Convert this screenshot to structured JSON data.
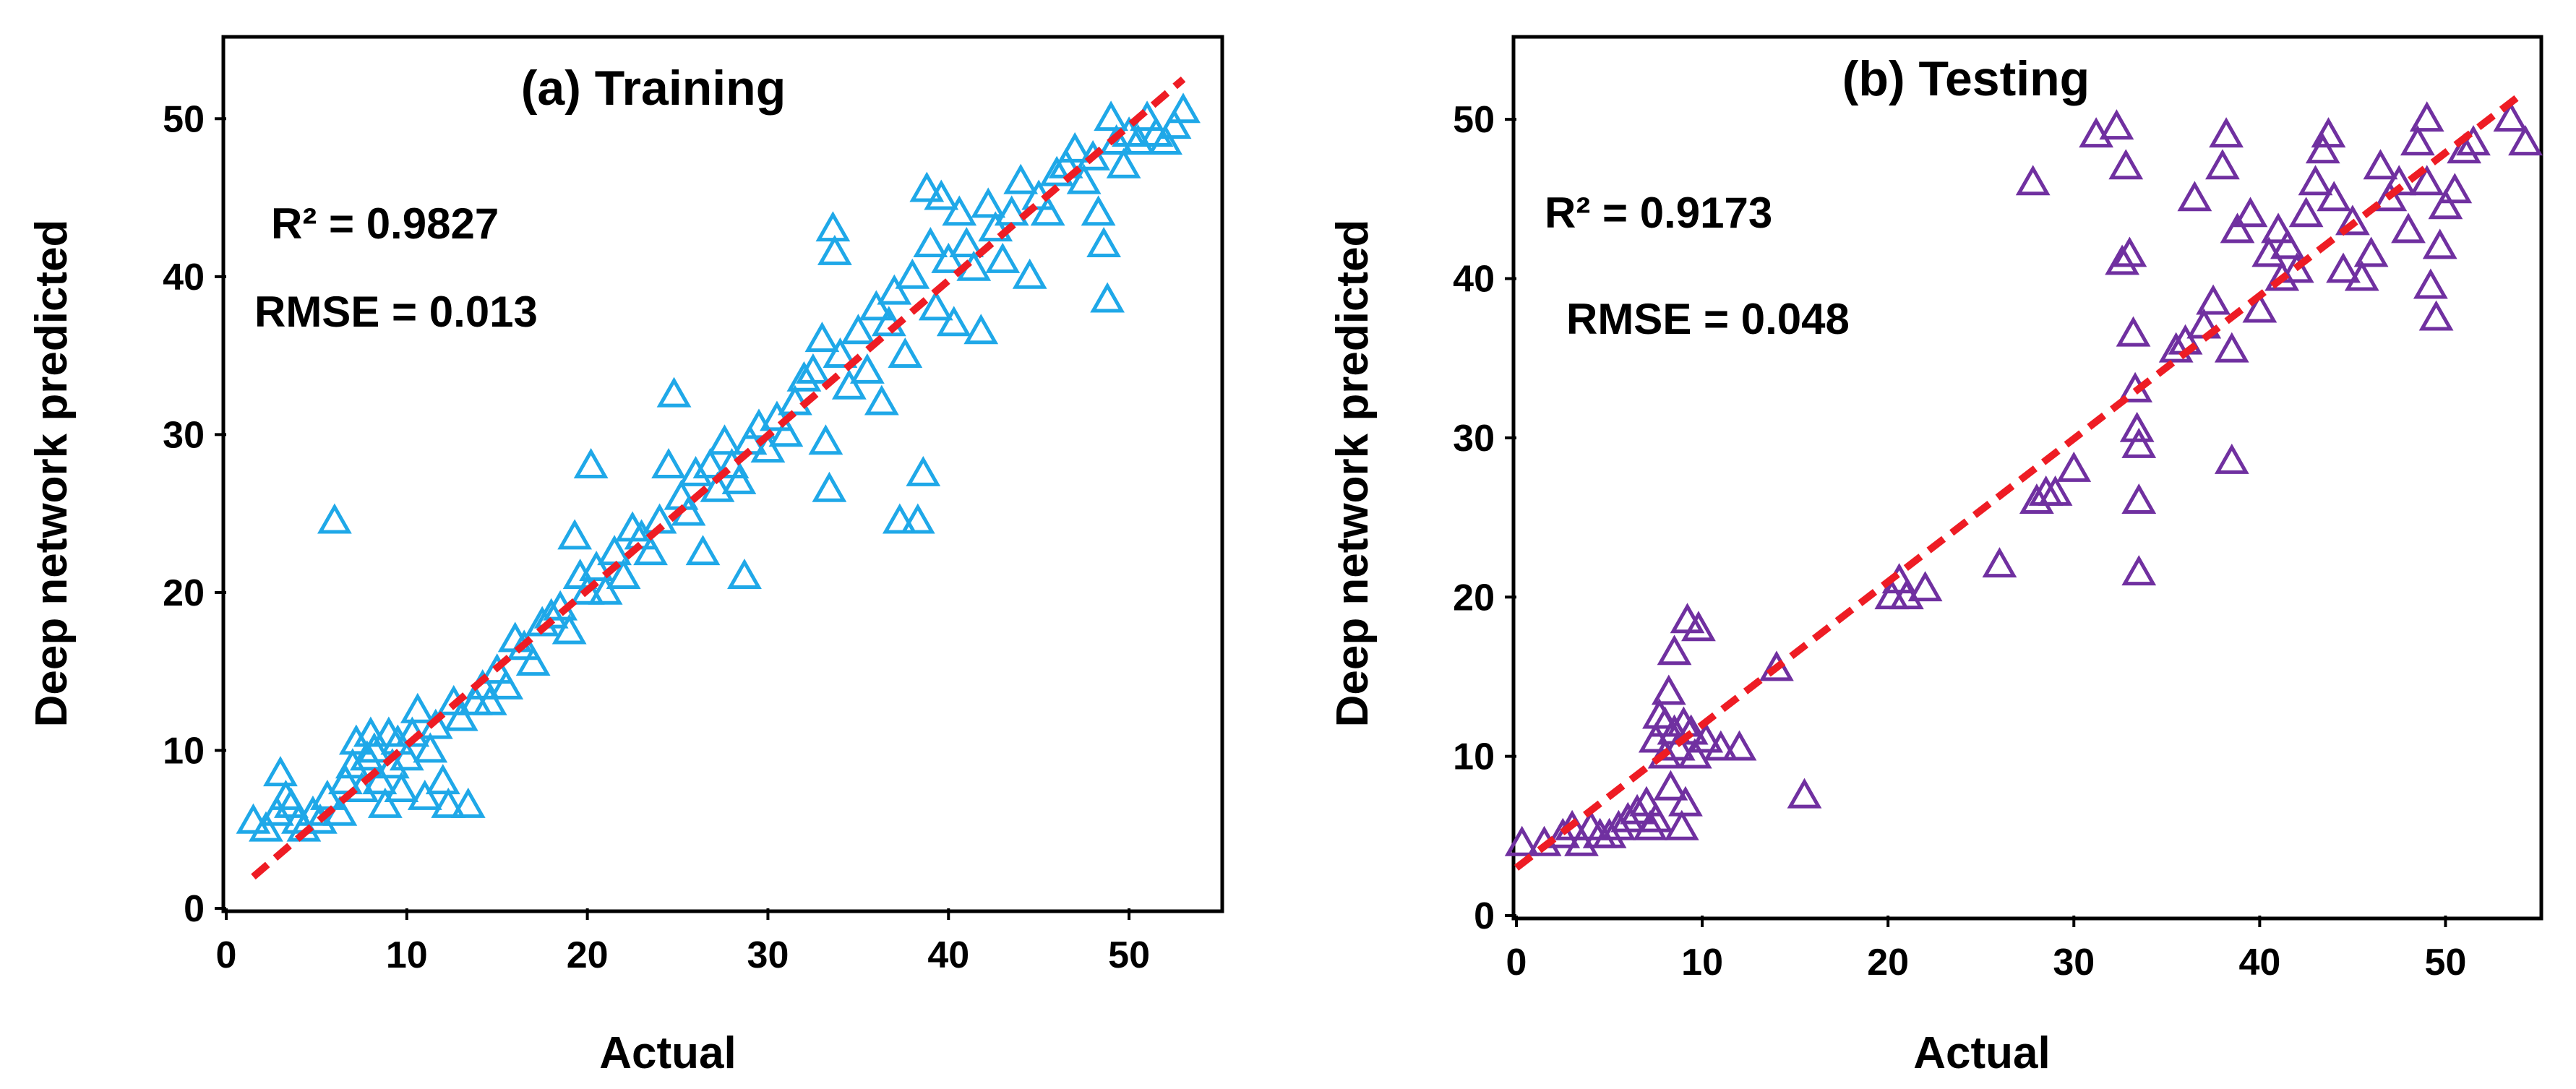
{
  "chart_data": [
    {
      "type": "scatter",
      "title": "(a) Training",
      "xlabel": "Actual",
      "ylabel": "Deep network predicted",
      "xlim": [
        0,
        55
      ],
      "ylim": [
        0,
        55
      ],
      "xticks": [
        0,
        10,
        20,
        30,
        40,
        50
      ],
      "yticks": [
        0,
        10,
        20,
        30,
        40,
        50
      ],
      "x_tick_labels": [
        "0",
        "10",
        "20",
        "30",
        "40",
        "50"
      ],
      "y_tick_labels": [
        "0",
        "10",
        "20",
        "30",
        "40",
        "50"
      ],
      "grid": false,
      "marker": "open-triangle",
      "marker_color": "#1FA8E8",
      "stats": {
        "r2": "R² = 0.9827",
        "rmse": "RMSE = 0.013"
      },
      "fit_line": {
        "color": "#EE1C24",
        "style": "dashed",
        "x": [
          1.5,
          53
        ],
        "y": [
          2,
          52.5
        ]
      },
      "series": [
        {
          "name": "Training",
          "points": [
            [
              1.5,
              5.5
            ],
            [
              2.2,
              5
            ],
            [
              2.8,
              6
            ],
            [
              3,
              8.5
            ],
            [
              3.3,
              7
            ],
            [
              3.6,
              6.5
            ],
            [
              4,
              5.5
            ],
            [
              4.3,
              5
            ],
            [
              4.8,
              6
            ],
            [
              5.2,
              5.5
            ],
            [
              5.6,
              7
            ],
            [
              6,
              24.5
            ],
            [
              6.3,
              6
            ],
            [
              6.6,
              8
            ],
            [
              7,
              9
            ],
            [
              7.2,
              10.5
            ],
            [
              7.5,
              7.5
            ],
            [
              7.8,
              9.5
            ],
            [
              8,
              11
            ],
            [
              8.2,
              10
            ],
            [
              8.5,
              8
            ],
            [
              8.8,
              6.5
            ],
            [
              9,
              11
            ],
            [
              9.2,
              9
            ],
            [
              9.5,
              10.5
            ],
            [
              9.7,
              7.5
            ],
            [
              10,
              9.5
            ],
            [
              10.3,
              11
            ],
            [
              10.6,
              12.5
            ],
            [
              11,
              7
            ],
            [
              11.3,
              10
            ],
            [
              11.6,
              11.5
            ],
            [
              12,
              8
            ],
            [
              12.3,
              6.5
            ],
            [
              12.6,
              13
            ],
            [
              13,
              12
            ],
            [
              13.4,
              6.5
            ],
            [
              13.8,
              13
            ],
            [
              14.2,
              14
            ],
            [
              14.6,
              13
            ],
            [
              15,
              15
            ],
            [
              15.5,
              14
            ],
            [
              16,
              17
            ],
            [
              16.5,
              16.5
            ],
            [
              17,
              15.5
            ],
            [
              17.5,
              18
            ],
            [
              18,
              18.5
            ],
            [
              18.5,
              19
            ],
            [
              19,
              17.5
            ],
            [
              19.3,
              23.5
            ],
            [
              19.6,
              21
            ],
            [
              20,
              20
            ],
            [
              20.2,
              28
            ],
            [
              20.5,
              21.5
            ],
            [
              21,
              20
            ],
            [
              21.5,
              22.5
            ],
            [
              22,
              21
            ],
            [
              22.5,
              24
            ],
            [
              23,
              23.5
            ],
            [
              23.5,
              22.5
            ],
            [
              24,
              24.5
            ],
            [
              24.5,
              28
            ],
            [
              24.8,
              32.5
            ],
            [
              25.2,
              26
            ],
            [
              25.6,
              25
            ],
            [
              26,
              27.5
            ],
            [
              26.4,
              22.5
            ],
            [
              26.8,
              28
            ],
            [
              27.2,
              26.5
            ],
            [
              27.6,
              29.5
            ],
            [
              28,
              28
            ],
            [
              28.4,
              27
            ],
            [
              28.7,
              21
            ],
            [
              29,
              29.5
            ],
            [
              29.5,
              30.5
            ],
            [
              30,
              29
            ],
            [
              30.5,
              31
            ],
            [
              31,
              30
            ],
            [
              31.5,
              32
            ],
            [
              32,
              33.5
            ],
            [
              32.5,
              34
            ],
            [
              33,
              36
            ],
            [
              33.2,
              29.5
            ],
            [
              33.4,
              26.5
            ],
            [
              33.6,
              43
            ],
            [
              33.7,
              41.5
            ],
            [
              34,
              35
            ],
            [
              34.5,
              33
            ],
            [
              35,
              36.5
            ],
            [
              35.5,
              34
            ],
            [
              36,
              38
            ],
            [
              36.3,
              32
            ],
            [
              36.7,
              37
            ],
            [
              37,
              39
            ],
            [
              37.3,
              24.5
            ],
            [
              37.6,
              35
            ],
            [
              38,
              40
            ],
            [
              38.3,
              24.5
            ],
            [
              38.6,
              27.5
            ],
            [
              38.8,
              45.5
            ],
            [
              39,
              42
            ],
            [
              39.3,
              38
            ],
            [
              39.6,
              45
            ],
            [
              40,
              41
            ],
            [
              40.3,
              37
            ],
            [
              40.6,
              44
            ],
            [
              41,
              42
            ],
            [
              41.4,
              40.5
            ],
            [
              41.8,
              36.5
            ],
            [
              42.2,
              44.5
            ],
            [
              42.6,
              43
            ],
            [
              43,
              41
            ],
            [
              43.5,
              44
            ],
            [
              44,
              46
            ],
            [
              44.5,
              40
            ],
            [
              45,
              45
            ],
            [
              45.5,
              44
            ],
            [
              46,
              46.5
            ],
            [
              46.5,
              47
            ],
            [
              47,
              48
            ],
            [
              47.5,
              46
            ],
            [
              48,
              47.5
            ],
            [
              48.3,
              44
            ],
            [
              48.6,
              42
            ],
            [
              48.8,
              38.5
            ],
            [
              49,
              50
            ],
            [
              49.3,
              48.5
            ],
            [
              49.7,
              47
            ],
            [
              50,
              49
            ],
            [
              50.5,
              48.5
            ],
            [
              51,
              50
            ],
            [
              51.5,
              49
            ],
            [
              52,
              48.5
            ],
            [
              52.5,
              49.5
            ],
            [
              53,
              50.5
            ]
          ]
        }
      ]
    },
    {
      "type": "scatter",
      "title": "(b) Testing",
      "xlabel": "Actual",
      "ylabel": "Deep network predicted",
      "xlim": [
        0,
        55
      ],
      "ylim": [
        0,
        55
      ],
      "xticks": [
        0,
        10,
        20,
        30,
        40,
        50
      ],
      "yticks": [
        0,
        10,
        20,
        30,
        40,
        50
      ],
      "x_tick_labels": [
        "0",
        "10",
        "20",
        "30",
        "40",
        "50"
      ],
      "y_tick_labels": [
        "0",
        "10",
        "20",
        "30",
        "40",
        "50"
      ],
      "grid": false,
      "marker": "open-triangle",
      "marker_color": "#7030A0",
      "stats": {
        "r2": "R² = 0.9173",
        "rmse": "RMSE = 0.048"
      },
      "fit_line": {
        "color": "#EE1C24",
        "style": "dashed",
        "x": [
          0,
          54
        ],
        "y": [
          3,
          51.5
        ]
      },
      "series": [
        {
          "name": "Testing",
          "points": [
            [
              0.3,
              4.5
            ],
            [
              1.5,
              4.5
            ],
            [
              2.5,
              5
            ],
            [
              3,
              5.5
            ],
            [
              3.5,
              4.5
            ],
            [
              4,
              5.5
            ],
            [
              4.5,
              5
            ],
            [
              5,
              5
            ],
            [
              5.5,
              5.5
            ],
            [
              6,
              6
            ],
            [
              6.5,
              6.5
            ],
            [
              7,
              7
            ],
            [
              7.2,
              5.5
            ],
            [
              7.5,
              6
            ],
            [
              7.5,
              11
            ],
            [
              7.7,
              12.5
            ],
            [
              8,
              10
            ],
            [
              8,
              12
            ],
            [
              8.2,
              14
            ],
            [
              8.3,
              8
            ],
            [
              8.5,
              11.5
            ],
            [
              8.5,
              16.5
            ],
            [
              8.7,
              10.5
            ],
            [
              8.9,
              5.5
            ],
            [
              9,
              12
            ],
            [
              9.1,
              7
            ],
            [
              9.2,
              18.5
            ],
            [
              9.4,
              11.5
            ],
            [
              9.6,
              10
            ],
            [
              9.8,
              18
            ],
            [
              10.2,
              11
            ],
            [
              11,
              10.5
            ],
            [
              12,
              10.5
            ],
            [
              14,
              15.5
            ],
            [
              15.5,
              7.5
            ],
            [
              20.2,
              20
            ],
            [
              20.6,
              21
            ],
            [
              21,
              20
            ],
            [
              22,
              20.5
            ],
            [
              26,
              22
            ],
            [
              27.8,
              46
            ],
            [
              28,
              26
            ],
            [
              28.5,
              26.5
            ],
            [
              29,
              26.5
            ],
            [
              30,
              28
            ],
            [
              31.2,
              49
            ],
            [
              32.3,
              49.5
            ],
            [
              32.6,
              41
            ],
            [
              32.8,
              47
            ],
            [
              33,
              41.5
            ],
            [
              33.2,
              36.5
            ],
            [
              33.3,
              33
            ],
            [
              33.4,
              30.5
            ],
            [
              33.5,
              29.5
            ],
            [
              33.5,
              26
            ],
            [
              33.5,
              21.5
            ],
            [
              35.5,
              35.5
            ],
            [
              36,
              36
            ],
            [
              36.5,
              45
            ],
            [
              37,
              37
            ],
            [
              37.5,
              38.5
            ],
            [
              38,
              47
            ],
            [
              38.2,
              49
            ],
            [
              38.5,
              35.5
            ],
            [
              38.5,
              28.5
            ],
            [
              38.8,
              43
            ],
            [
              39.5,
              44
            ],
            [
              40,
              38
            ],
            [
              40.5,
              41.5
            ],
            [
              41,
              43
            ],
            [
              41.2,
              40
            ],
            [
              41.5,
              42
            ],
            [
              42,
              40.5
            ],
            [
              42.5,
              44
            ],
            [
              43,
              46
            ],
            [
              43.4,
              48
            ],
            [
              43.7,
              49
            ],
            [
              44,
              45
            ],
            [
              44.5,
              40.5
            ],
            [
              45,
              43.5
            ],
            [
              45.5,
              40
            ],
            [
              46,
              41.5
            ],
            [
              46.5,
              47
            ],
            [
              47,
              45
            ],
            [
              47.5,
              46
            ],
            [
              48,
              43
            ],
            [
              48.5,
              48.5
            ],
            [
              49,
              46
            ],
            [
              49,
              50
            ],
            [
              49.2,
              39.5
            ],
            [
              49.5,
              37.5
            ],
            [
              49.7,
              42
            ],
            [
              50,
              44.5
            ],
            [
              50.5,
              45.5
            ],
            [
              51,
              48
            ],
            [
              51.5,
              48.5
            ],
            [
              53.5,
              50
            ],
            [
              54.3,
              48.5
            ]
          ]
        }
      ]
    }
  ]
}
